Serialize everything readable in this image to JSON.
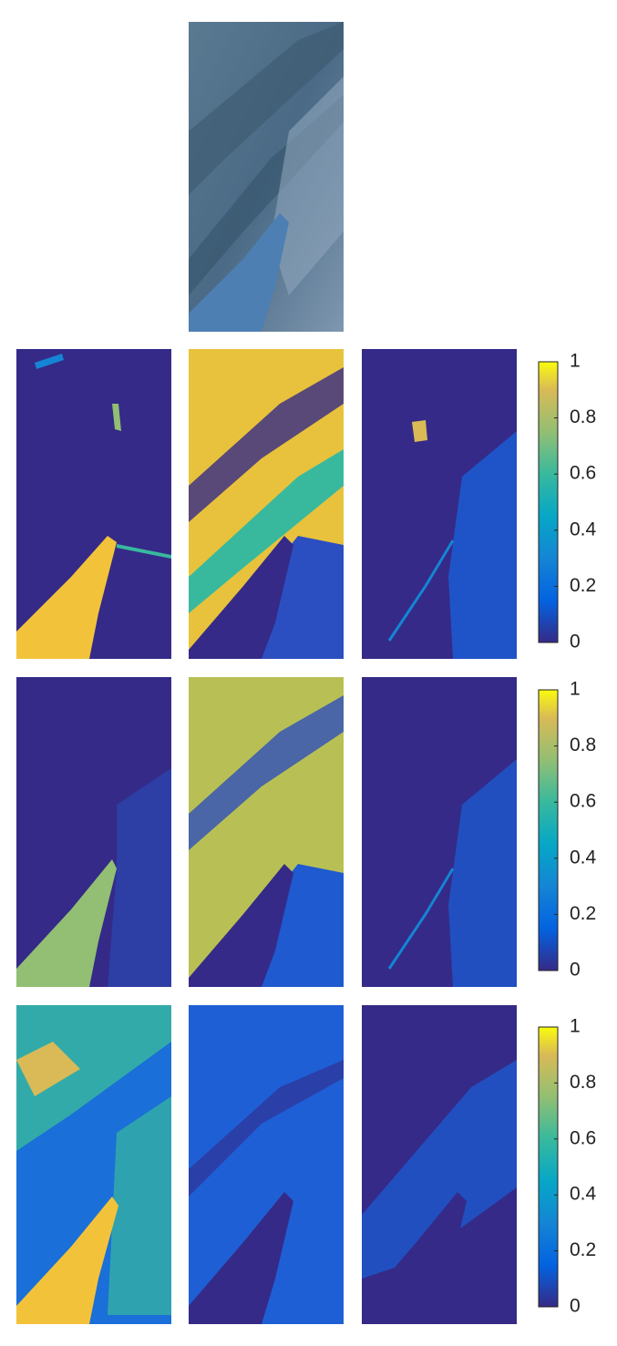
{
  "chart_data": [
    {
      "type": "colorbar",
      "ylim": [
        0,
        1
      ],
      "yticks": [
        0,
        0.2,
        0.4,
        0.6,
        0.8,
        1
      ]
    },
    {
      "type": "colorbar",
      "ylim": [
        0,
        1
      ],
      "yticks": [
        0,
        0.2,
        0.4,
        0.6,
        0.8,
        1
      ]
    },
    {
      "type": "colorbar",
      "ylim": [
        0,
        1
      ],
      "yticks": [
        0,
        0.2,
        0.4,
        0.6,
        0.8,
        1
      ]
    }
  ]
}
